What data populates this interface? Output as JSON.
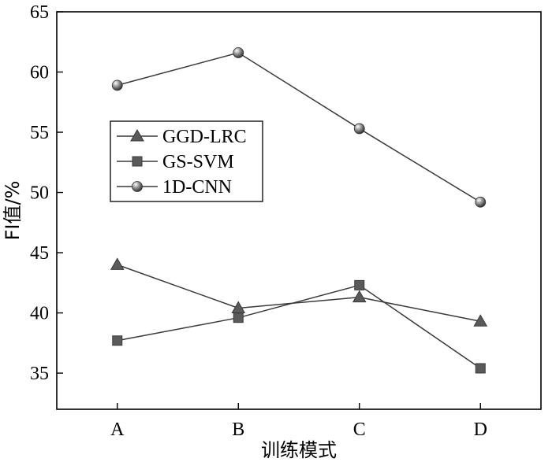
{
  "chart_data": {
    "type": "line",
    "categories": [
      "A",
      "B",
      "C",
      "D"
    ],
    "series": [
      {
        "name": "GGD-LRC",
        "marker": "triangle",
        "values": [
          44.0,
          40.4,
          41.3,
          39.3
        ]
      },
      {
        "name": "GS-SVM",
        "marker": "square",
        "values": [
          37.7,
          39.6,
          42.3,
          35.4
        ]
      },
      {
        "name": "1D-CNN",
        "marker": "sphere",
        "values": [
          58.9,
          61.6,
          55.3,
          49.2
        ]
      }
    ],
    "xlabel": "训练模式",
    "ylabel": "FI值/%",
    "ylim": [
      32,
      65
    ],
    "yticks": [
      35,
      40,
      45,
      50,
      55,
      60,
      65
    ],
    "grid": false,
    "legend_position": "middle-left",
    "colors": {
      "line": "#3a3a3a",
      "marker": "#5a5a5a"
    }
  }
}
